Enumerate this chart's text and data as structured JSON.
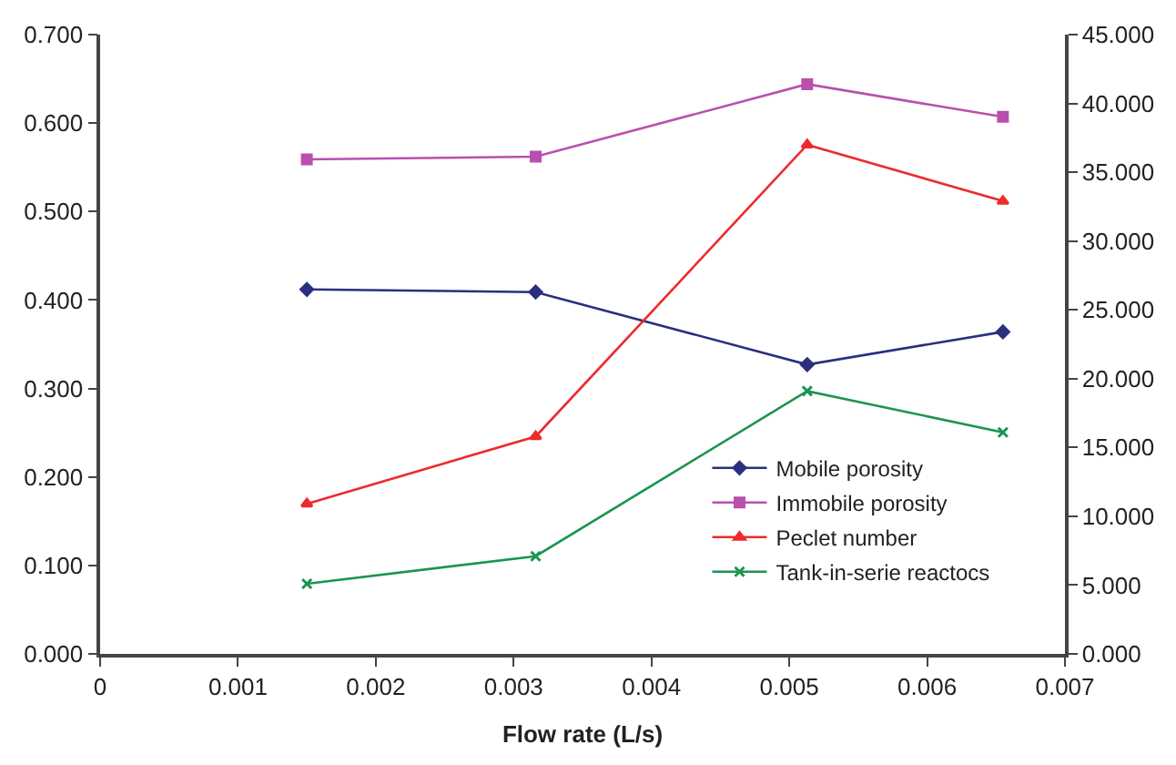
{
  "chart_data": {
    "type": "line",
    "xlabel": "Flow rate (L/s)",
    "x": [
      0.0015,
      0.00316,
      0.00513,
      0.00655
    ],
    "series": [
      {
        "name": "Mobile porosity",
        "color": "#2b2f7f",
        "marker": "diamond",
        "values": [
          0.412,
          0.409,
          0.327,
          0.364
        ]
      },
      {
        "name": "Immobile porosity",
        "color": "#b94fae",
        "marker": "square",
        "values": [
          0.559,
          0.562,
          0.644,
          0.607
        ]
      },
      {
        "name": "Peclet number",
        "color": "#ee2a2a",
        "marker": "triangle",
        "axis": "y2",
        "values": [
          10.9,
          15.8,
          37.0,
          32.9
        ]
      },
      {
        "name": "Tank-in-serie reactocs",
        "color": "#1d9450",
        "marker": "cross",
        "axis": "y2",
        "values": [
          5.1,
          7.1,
          19.1,
          16.1
        ]
      }
    ],
    "xlim": [
      0,
      0.007
    ],
    "xticks": [
      0,
      0.001,
      0.002,
      0.003,
      0.004,
      0.005,
      0.006,
      0.007
    ],
    "ylim": [
      0,
      0.7
    ],
    "yticks": [
      {
        "value": 0,
        "label": "0.000"
      },
      {
        "value": 0.1,
        "label": "0.100"
      },
      {
        "value": 0.2,
        "label": "0.200"
      },
      {
        "value": 0.3,
        "label": "0.300"
      },
      {
        "value": 0.4,
        "label": "0.400"
      },
      {
        "value": 0.5,
        "label": "0.500"
      },
      {
        "value": 0.6,
        "label": "0.600"
      },
      {
        "value": 0.7,
        "label": "0.700"
      }
    ],
    "y2lim": [
      0,
      45
    ],
    "y2ticks": [
      {
        "value": 0,
        "label": "0.000"
      },
      {
        "value": 5,
        "label": "5.000"
      },
      {
        "value": 10,
        "label": "10.000"
      },
      {
        "value": 15,
        "label": "15.000"
      },
      {
        "value": 20,
        "label": "20.000"
      },
      {
        "value": 25,
        "label": "25.000"
      },
      {
        "value": 30,
        "label": "30.000"
      },
      {
        "value": 35,
        "label": "35.000"
      },
      {
        "value": 40,
        "label": "40.000"
      },
      {
        "value": 45,
        "label": "45.000"
      }
    ],
    "legend": "bottom right",
    "line_style": "solid"
  }
}
